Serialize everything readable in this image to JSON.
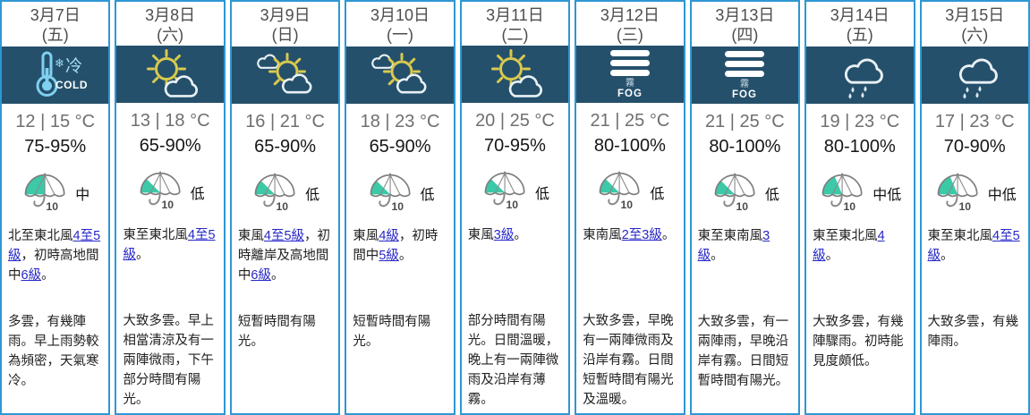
{
  "labels": {
    "cold_zh": "冷",
    "cold_en": "COLD",
    "snowflake": "❄",
    "fog_zh": "霧",
    "fog_en": "FOG",
    "psr_number": "10"
  },
  "colors": {
    "column_border": "#2e97d4",
    "icon_band_bg": "#25506b",
    "psr_teal": "#3cc9a7",
    "link_blue": "#2727c8",
    "sun_yellow": "#d9c94e",
    "cold_blue": "#7fd0ef",
    "cloud_white": "#e9f1f5",
    "temp_gray": "#6f6f6f",
    "date_gray": "#4d4d4d",
    "body_text": "#222222"
  },
  "days": [
    {
      "date": "3月7日",
      "weekday": "(五)",
      "icon": "cold",
      "temp": "12 | 15 °C",
      "humidity": "75-95%",
      "psr": {
        "label": "中",
        "fill": 90
      },
      "wind": [
        {
          "text": "北至東北風"
        },
        {
          "text": "4至5級",
          "link": true
        },
        {
          "text": "，初時高地間中"
        },
        {
          "text": "6級",
          "link": true
        },
        {
          "text": "。"
        }
      ],
      "weather": "多雲，有幾陣雨。早上雨勢較為頻密，天氣寒冷。"
    },
    {
      "date": "3月8日",
      "weekday": "(六)",
      "icon": "sun_cloud",
      "temp": "13 | 18 °C",
      "humidity": "65-90%",
      "psr": {
        "label": "低",
        "fill": 45
      },
      "wind": [
        {
          "text": "東至東北風"
        },
        {
          "text": "4至5級",
          "link": true
        },
        {
          "text": "。"
        }
      ],
      "weather": "大致多雲。早上相當清涼及有一兩陣微雨，下午部分時間有陽光。"
    },
    {
      "date": "3月9日",
      "weekday": "(日)",
      "icon": "clouds_sun",
      "temp": "16 | 21 °C",
      "humidity": "65-90%",
      "psr": {
        "label": "低",
        "fill": 45
      },
      "wind": [
        {
          "text": "東風"
        },
        {
          "text": "4至5級",
          "link": true
        },
        {
          "text": "，初時離岸及高地間中"
        },
        {
          "text": "6級",
          "link": true
        },
        {
          "text": "。"
        }
      ],
      "weather": "短暫時間有陽光。"
    },
    {
      "date": "3月10日",
      "weekday": "(一)",
      "icon": "clouds_sun",
      "temp": "18 | 23 °C",
      "humidity": "65-90%",
      "psr": {
        "label": "低",
        "fill": 45
      },
      "wind": [
        {
          "text": "東風"
        },
        {
          "text": "4級",
          "link": true
        },
        {
          "text": "，初時間中"
        },
        {
          "text": "5級",
          "link": true
        },
        {
          "text": "。"
        }
      ],
      "weather": "短暫時間有陽光。"
    },
    {
      "date": "3月11日",
      "weekday": "(二)",
      "icon": "sun_cloud",
      "temp": "20 | 25 °C",
      "humidity": "70-95%",
      "psr": {
        "label": "低",
        "fill": 45
      },
      "wind": [
        {
          "text": "東風"
        },
        {
          "text": "3級",
          "link": true
        },
        {
          "text": "。"
        }
      ],
      "weather": "部分時間有陽光。日間溫暖，晚上有一兩陣微雨及沿岸有薄霧。"
    },
    {
      "date": "3月12日",
      "weekday": "(三)",
      "icon": "fog",
      "temp": "21 | 25 °C",
      "humidity": "80-100%",
      "psr": {
        "label": "低",
        "fill": 45
      },
      "wind": [
        {
          "text": "東南風"
        },
        {
          "text": "2至3級",
          "link": true
        },
        {
          "text": "。"
        }
      ],
      "weather": "大致多雲，早晚有一兩陣微雨及沿岸有霧。日間短暫時間有陽光及溫暖。"
    },
    {
      "date": "3月13日",
      "weekday": "(四)",
      "icon": "fog",
      "temp": "21 | 25 °C",
      "humidity": "80-100%",
      "psr": {
        "label": "低",
        "fill": 45
      },
      "wind": [
        {
          "text": "東至東南風"
        },
        {
          "text": "3級",
          "link": true
        },
        {
          "text": "。"
        }
      ],
      "weather": "大致多雲，有一兩陣雨，早晚沿岸有霧。日間短暫時間有陽光。"
    },
    {
      "date": "3月14日",
      "weekday": "(五)",
      "icon": "rain",
      "temp": "19 | 23 °C",
      "humidity": "80-100%",
      "psr": {
        "label": "中低",
        "fill": 67.5
      },
      "wind": [
        {
          "text": "東至東北風"
        },
        {
          "text": "4級",
          "link": true
        },
        {
          "text": "。"
        }
      ],
      "weather": "大致多雲，有幾陣驟雨。初時能見度頗低。"
    },
    {
      "date": "3月15日",
      "weekday": "(六)",
      "icon": "rain",
      "temp": "17 | 23 °C",
      "humidity": "70-90%",
      "psr": {
        "label": "中低",
        "fill": 67.5
      },
      "wind": [
        {
          "text": "東至東北風"
        },
        {
          "text": "4至5級",
          "link": true
        },
        {
          "text": "。"
        }
      ],
      "weather": "大致多雲，有幾陣雨。"
    }
  ]
}
